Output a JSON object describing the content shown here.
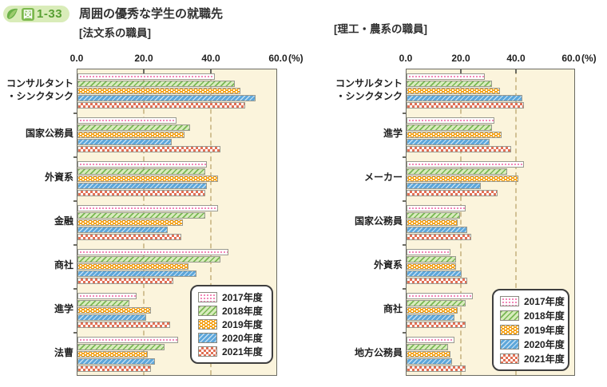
{
  "header": {
    "badge_prefix": "図",
    "badge_number": "1-33",
    "title": "周囲の優秀な学生の就職先"
  },
  "shared": {
    "x_tick_labels": [
      "0.0",
      "20.0",
      "40.0",
      "60.0"
    ],
    "x_unit": "(%)",
    "legend": [
      "2017年度",
      "2018年度",
      "2019年度",
      "2020年度",
      "2021年度"
    ],
    "colors": {
      "y2017_dot": "#f287b7",
      "y2018_hatch": "#79b753",
      "y2019_base": "#f5a41d",
      "y2020_base": "#5ca6da",
      "y2021_check": "#e17055",
      "plot_background": "#fbf4dc",
      "gridline": "#d2c194",
      "badge_green": "#7cb94e"
    }
  },
  "chart_data": [
    {
      "type": "bar",
      "orientation": "horizontal",
      "title": "[法文系の職員]",
      "xlabel": "(%)",
      "xlim": [
        0,
        60
      ],
      "x_ticks": [
        0,
        20,
        40,
        60
      ],
      "grid": "dashed vertical at 20 and 40",
      "legend_position": "bottom-right",
      "categories": [
        "コンサルタント\n・シンクタンク",
        "国家公務員",
        "外資系",
        "金融",
        "商社",
        "進学",
        "法曹"
      ],
      "series": [
        {
          "name": "2017年度",
          "values": [
            41.0,
            29.5,
            38.5,
            42.0,
            45.0,
            17.5,
            30.0
          ]
        },
        {
          "name": "2018年度",
          "values": [
            47.0,
            33.5,
            38.0,
            38.0,
            42.5,
            15.5,
            26.0
          ]
        },
        {
          "name": "2019年度",
          "values": [
            48.5,
            32.0,
            42.0,
            31.5,
            33.0,
            22.0,
            21.0
          ]
        },
        {
          "name": "2020年度",
          "values": [
            53.0,
            28.0,
            38.5,
            27.0,
            35.5,
            20.5,
            23.0
          ]
        },
        {
          "name": "2021年度",
          "values": [
            50.0,
            42.5,
            38.0,
            31.0,
            28.5,
            27.5,
            22.0
          ]
        }
      ]
    },
    {
      "type": "bar",
      "orientation": "horizontal",
      "title": "[理工・農系の職員]",
      "xlabel": "(%)",
      "xlim": [
        0,
        60
      ],
      "x_ticks": [
        0,
        20,
        40,
        60
      ],
      "grid": "dashed vertical at 20 and 40",
      "legend_position": "bottom-right",
      "categories": [
        "コンサルタント\n・シンクタンク",
        "進学",
        "メーカー",
        "国家公務員",
        "外資系",
        "商社",
        "地方公務員"
      ],
      "series": [
        {
          "name": "2017年度",
          "values": [
            28.5,
            32.0,
            42.5,
            21.5,
            16.0,
            24.0,
            17.5
          ]
        },
        {
          "name": "2018年度",
          "values": [
            31.0,
            31.0,
            36.5,
            19.5,
            18.0,
            21.5,
            15.0
          ]
        },
        {
          "name": "2019年度",
          "values": [
            34.0,
            34.5,
            40.5,
            18.5,
            18.0,
            18.5,
            16.0
          ]
        },
        {
          "name": "2020年度",
          "values": [
            42.0,
            30.0,
            27.0,
            22.0,
            20.0,
            17.5,
            16.5
          ]
        },
        {
          "name": "2021年度",
          "values": [
            42.5,
            38.0,
            33.0,
            23.5,
            22.0,
            21.5,
            21.5
          ]
        }
      ]
    }
  ]
}
